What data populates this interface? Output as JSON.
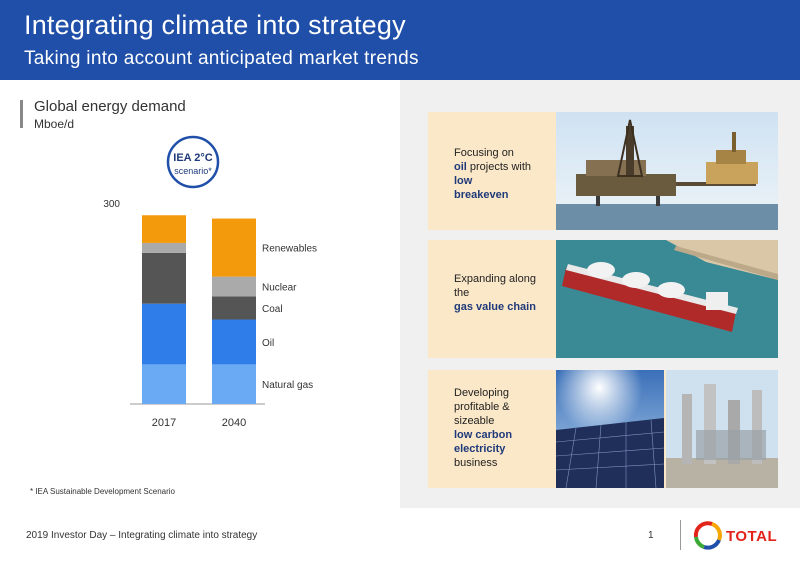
{
  "header": {
    "title": "Integrating climate into strategy",
    "subtitle": "Taking into account anticipated market trends"
  },
  "chart": {
    "title": "Global energy demand",
    "unit": "Mboe/d",
    "badge_line1": "IEA 2°C",
    "badge_line2": "scenario*",
    "y_tick": "300",
    "footnote": "* IEA Sustainable Development Scenario"
  },
  "chart_data": {
    "type": "bar",
    "stacked": true,
    "title": "Global energy demand",
    "ylabel": "Mboe/d",
    "categories": [
      "2017",
      "2040"
    ],
    "ylim": [
      0,
      300
    ],
    "y_ticks": [
      300
    ],
    "series": [
      {
        "name": "Natural gas",
        "values": [
          60,
          60
        ],
        "color_2017": "#6aaaf5",
        "color_2040": "#6aaaf5"
      },
      {
        "name": "Oil",
        "values": [
          92,
          68
        ],
        "color_2017": "#2e7de8",
        "color_2040": "#2e7de8"
      },
      {
        "name": "Coal",
        "values": [
          77,
          35
        ],
        "color_2017": "#555555",
        "color_2040": "#555555"
      },
      {
        "name": "Nuclear",
        "values": [
          15,
          30
        ],
        "color_2017": "#aaaaaa",
        "color_2040": "#aaaaaa"
      },
      {
        "name": "Renewables",
        "values": [
          42,
          88
        ],
        "color_2017": "#f39a0c",
        "color_2040": "#f39a0c"
      }
    ],
    "legend_placement": "right"
  },
  "cards": [
    {
      "pre": "Focusing on",
      "bold1": "oil",
      "mid": "projects with",
      "bold2": "low",
      "bold3": "breakeven",
      "post": ""
    },
    {
      "pre": "Expanding along the",
      "bold1": "gas value chain"
    },
    {
      "pre": "Developing profitable & sizeable",
      "bold1": "low carbon electricity",
      "post": "business"
    }
  ],
  "footer": {
    "text": "2019 Investor Day – Integrating climate into strategy",
    "page": "1",
    "logo": "TOTAL"
  },
  "colors": {
    "header": "#1f4fa8",
    "card_bg": "#fbe8c8",
    "accent_text": "#1f3a7a",
    "logo_red": "#e2231a"
  }
}
